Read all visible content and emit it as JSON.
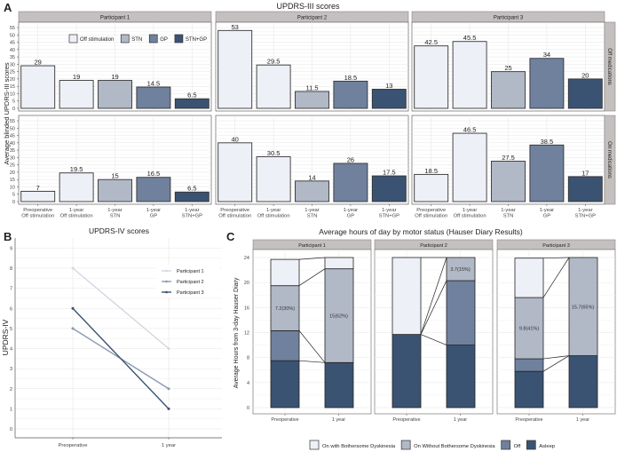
{
  "chart_data": [
    {
      "panel": "A",
      "type": "bar",
      "title": "UPDRS-III scores",
      "ylabel": "Average blinded UPDRS-III scores",
      "ylim": [
        0,
        55
      ],
      "yticks": [
        0,
        5,
        10,
        15,
        20,
        25,
        30,
        35,
        40,
        45,
        50,
        55
      ],
      "categories": [
        "Preoperative\nOff stimulation",
        "1-year\nOff stimulation",
        "1-year\nSTN",
        "1-year\nGP",
        "1-year\nSTN+GP"
      ],
      "category_groups": [
        "Off stimulation",
        "Off stimulation",
        "STN",
        "GP",
        "STN+GP"
      ],
      "legend": [
        "Off stimulation",
        "STN",
        "GP",
        "STN+GP"
      ],
      "legend_colors": [
        "#eef0f7",
        "#b1b8c6",
        "#6f819d",
        "#3b5372"
      ],
      "legend_position": "inside top (Participant 1, Off medications)",
      "facets_cols": [
        "Participant 1",
        "Participant 2",
        "Participant 3"
      ],
      "facets_rows": [
        "Off medications",
        "On medications"
      ],
      "values": {
        "Off medications": [
          [
            29,
            19,
            19,
            14.5,
            6.5
          ],
          [
            53,
            29.5,
            11.5,
            18.5,
            13
          ],
          [
            42.5,
            45.5,
            25,
            34,
            20
          ]
        ],
        "On medications": [
          [
            7,
            19.5,
            15,
            16.5,
            6.5
          ],
          [
            40,
            30.5,
            14,
            26,
            17.5
          ],
          [
            18.5,
            46.5,
            27.5,
            38.5,
            17
          ]
        ]
      },
      "data_labels": {
        "Off medications": [
          [
            "29",
            "19",
            "19",
            "14.5",
            "6.5"
          ],
          [
            "53",
            "29.5",
            "11.5",
            "18.5",
            "13"
          ],
          [
            "42.5",
            "45.5",
            "25",
            "34",
            "20"
          ]
        ],
        "On medications": [
          [
            "7",
            "19.5",
            "15",
            "16.5",
            "6.5"
          ],
          [
            "40",
            "30.5",
            "14",
            "26",
            "17.5"
          ],
          [
            "18.5",
            "46.5",
            "27.5",
            "38.5",
            "17"
          ]
        ]
      }
    },
    {
      "panel": "B",
      "type": "line",
      "title": "UPDRS-IV scores",
      "ylabel": "UPDRS-IV",
      "ylim": [
        0,
        9
      ],
      "yticks": [
        0,
        1,
        2,
        3,
        4,
        5,
        6,
        7,
        8,
        9
      ],
      "x": [
        "Preoperative",
        "1 year"
      ],
      "legend_position": "top-right",
      "series": [
        {
          "name": "Participant 1",
          "values": [
            8,
            4
          ],
          "color": "#d3d8e2"
        },
        {
          "name": "Participant 2",
          "values": [
            5,
            2
          ],
          "color": "#8a99b2"
        },
        {
          "name": "Participant 3",
          "values": [
            6,
            1
          ],
          "color": "#3b5372"
        }
      ]
    },
    {
      "panel": "C",
      "type": "bar",
      "stacked": true,
      "title": "Average hours of day by motor status (Hauser Diary Results)",
      "ylabel": "Average Hours from 3-day Hauser Diary",
      "ylim": [
        0,
        24
      ],
      "yticks": [
        0,
        4,
        8,
        12,
        16,
        20,
        24
      ],
      "x": [
        "Preoperative",
        "1 year"
      ],
      "facets": [
        "Participant 1",
        "Participant 2",
        "Participant 3"
      ],
      "legend": [
        "On with Bothersome Dyskinesia",
        "On Without Bothersome Dyskinesia",
        "Off",
        "Asleep"
      ],
      "legend_colors": [
        "#eef0f7",
        "#b1b8c6",
        "#6f819d",
        "#3b5372"
      ],
      "legend_position": "bottom",
      "stack_order_bottom_up": [
        "Asleep",
        "Off",
        "On Without Bothersome Dyskinesia",
        "On with Bothersome Dyskinesia"
      ],
      "values": [
        {
          "Preoperative": [
            7.5,
            4.8,
            7.2,
            4.2
          ],
          "1 year": [
            7.2,
            0,
            15,
            1.8
          ]
        },
        {
          "Preoperative": [
            11.7,
            0,
            0,
            12.3
          ],
          "1 year": [
            10,
            10.3,
            3.7,
            0
          ]
        },
        {
          "Preoperative": [
            5.8,
            2,
            9.8,
            6.3
          ],
          "1 year": [
            8.3,
            0,
            15.7,
            0
          ]
        }
      ],
      "annotations": [
        {
          "facet": "Participant 1",
          "x": "Preoperative",
          "text": "7.2(30%)"
        },
        {
          "facet": "Participant 1",
          "x": "1 year",
          "text": "15(62%)"
        },
        {
          "facet": "Participant 2",
          "x": "1 year",
          "text": "3.7(15%)"
        },
        {
          "facet": "Participant 3",
          "x": "Preoperative",
          "text": "9.8(41%)"
        },
        {
          "facet": "Participant 3",
          "x": "1 year",
          "text": "15.7(65%)"
        }
      ]
    }
  ],
  "panel_letters": [
    "A",
    "B",
    "C"
  ]
}
